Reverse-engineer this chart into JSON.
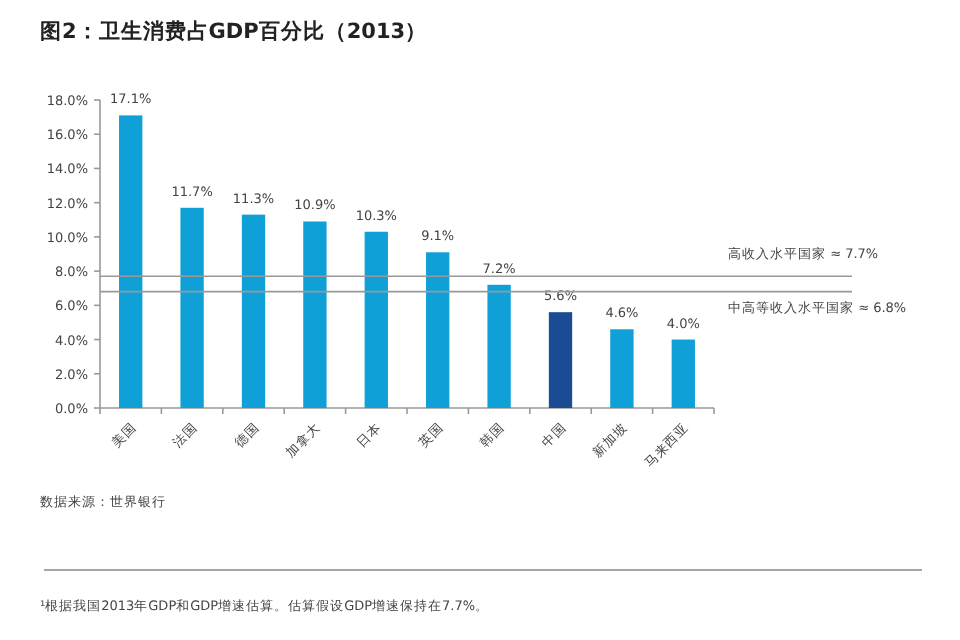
{
  "chart_data": {
    "type": "bar",
    "title": "图2：卫生消费占GDP百分比（2013）",
    "categories": [
      "美国",
      "法国",
      "德国",
      "加拿大",
      "日本",
      "英国",
      "韩国",
      "中国",
      "新加坡",
      "马来西亚"
    ],
    "values": [
      17.1,
      11.7,
      11.3,
      10.9,
      10.3,
      9.1,
      7.2,
      5.6,
      4.6,
      4.0
    ],
    "value_labels": [
      "17.1%",
      "11.7%",
      "11.3%",
      "10.9%",
      "10.3%",
      "9.1%",
      "7.2%",
      "5.6%",
      "4.6%",
      "4.0%"
    ],
    "colors": [
      "#0ea0d6",
      "#0ea0d6",
      "#0ea0d6",
      "#0ea0d6",
      "#0ea0d6",
      "#0ea0d6",
      "#0ea0d6",
      "#1a4c93",
      "#0ea0d6",
      "#0ea0d6"
    ],
    "ylim": [
      0,
      18
    ],
    "yticks": [
      {
        "value": 0,
        "label": "0.0%"
      },
      {
        "value": 2,
        "label": "2.0%"
      },
      {
        "value": 4,
        "label": "4.0%"
      },
      {
        "value": 6,
        "label": "6.0%"
      },
      {
        "value": 8,
        "label": "8.0%"
      },
      {
        "value": 10,
        "label": "10.0%"
      },
      {
        "value": 12,
        "label": "12.0%"
      },
      {
        "value": 14,
        "label": "14.0%"
      },
      {
        "value": 16,
        "label": "16.0%"
      },
      {
        "value": 18,
        "label": "18.0%"
      }
    ],
    "ref_lines": [
      {
        "axis": "y",
        "value": 7.7,
        "label": "高收入水平国家 ≈ 7.7%",
        "color": "#999999"
      },
      {
        "axis": "y",
        "value": 6.8,
        "label": "中高等收入水平国家 ≈ 6.8%",
        "color": "#999999"
      }
    ],
    "annotations": [
      "数据来源：世界银行",
      "¹根据我国2013年GDP和GDP增速估算。估算假设GDP增速保持在7.7%。"
    ]
  }
}
